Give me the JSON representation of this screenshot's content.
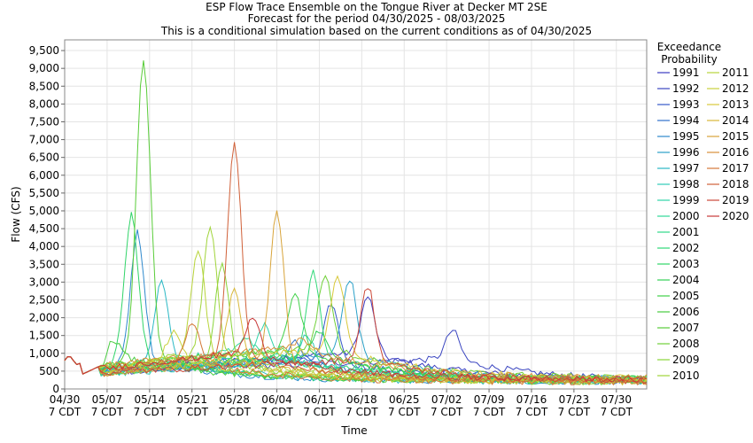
{
  "chart_data": {
    "type": "line",
    "title": [
      "ESP Flow Trace Ensemble on the Tongue River at Decker MT 2SE",
      "Forecast for the period 04/30/2025 - 08/03/2025",
      "This is a conditional simulation based on the current conditions as of 04/30/2025"
    ],
    "xlabel": "Time",
    "ylabel": "Flow (CFS)",
    "ylim": [
      0,
      9800
    ],
    "yticks": [
      0,
      500,
      1000,
      1500,
      2000,
      2500,
      3000,
      3500,
      4000,
      4500,
      5000,
      5500,
      6000,
      6500,
      7000,
      7500,
      8000,
      8500,
      9000,
      9500
    ],
    "ytick_labels": [
      "0",
      "500",
      "1,000",
      "1,500",
      "2,000",
      "2,500",
      "3,000",
      "3,500",
      "4,000",
      "4,500",
      "5,000",
      "5,500",
      "6,000",
      "6,500",
      "7,000",
      "7,500",
      "8,000",
      "8,500",
      "9,000",
      "9,500"
    ],
    "xlim_days": [
      0,
      96
    ],
    "xticks": [
      {
        "day": 0,
        "date": "04/30",
        "tz": "7 CDT"
      },
      {
        "day": 7,
        "date": "05/07",
        "tz": "7 CDT"
      },
      {
        "day": 14,
        "date": "05/14",
        "tz": "7 CDT"
      },
      {
        "day": 21,
        "date": "05/21",
        "tz": "7 CDT"
      },
      {
        "day": 28,
        "date": "05/28",
        "tz": "7 CDT"
      },
      {
        "day": 35,
        "date": "06/04",
        "tz": "7 CDT"
      },
      {
        "day": 42,
        "date": "06/11",
        "tz": "7 CDT"
      },
      {
        "day": 49,
        "date": "06/18",
        "tz": "7 CDT"
      },
      {
        "day": 56,
        "date": "06/25",
        "tz": "7 CDT"
      },
      {
        "day": 63,
        "date": "07/02",
        "tz": "7 CDT"
      },
      {
        "day": 70,
        "date": "07/09",
        "tz": "7 CDT"
      },
      {
        "day": 77,
        "date": "07/16",
        "tz": "7 CDT"
      },
      {
        "day": 84,
        "date": "07/23",
        "tz": "7 CDT"
      },
      {
        "day": 91,
        "date": "07/30",
        "tz": "7 CDT"
      }
    ],
    "grid": true,
    "legend_title": [
      "Exceedance",
      "Probability"
    ],
    "legend_position": "right",
    "series": [
      {
        "name": "1991",
        "color": "#3a3ac0",
        "peak_day": 50,
        "peak": 2600
      },
      {
        "name": "1992",
        "color": "#3a45c0",
        "peak_day": 64,
        "peak": 1650
      },
      {
        "name": "1993",
        "color": "#3558c8",
        "peak_day": 44,
        "peak": 2400
      },
      {
        "name": "1994",
        "color": "#3070cc",
        "peak_day": 38,
        "peak": 1300
      },
      {
        "name": "1995",
        "color": "#2d88cc",
        "peak_day": 12,
        "peak": 4400
      },
      {
        "name": "1996",
        "color": "#2aa0c8",
        "peak_day": 47,
        "peak": 3100
      },
      {
        "name": "1997",
        "color": "#2ab8c4",
        "peak_day": 16,
        "peak": 3000
      },
      {
        "name": "1998",
        "color": "#2ecab8",
        "peak_day": 40,
        "peak": 1500
      },
      {
        "name": "1999",
        "color": "#30d4a8",
        "peak_day": 33,
        "peak": 1800
      },
      {
        "name": "2000",
        "color": "#30d898",
        "peak_day": 30,
        "peak": 1400
      },
      {
        "name": "2001",
        "color": "#30d888",
        "peak_day": 36,
        "peak": 1200
      },
      {
        "name": "2002",
        "color": "#30d878",
        "peak_day": 41,
        "peak": 3300
      },
      {
        "name": "2003",
        "color": "#30d468",
        "peak_day": 11,
        "peak": 4900
      },
      {
        "name": "2004",
        "color": "#34d058",
        "peak_day": 42,
        "peak": 1600
      },
      {
        "name": "2005",
        "color": "#40d048",
        "peak_day": 38,
        "peak": 2700
      },
      {
        "name": "2006",
        "color": "#48cc40",
        "peak_day": 8,
        "peak": 1400
      },
      {
        "name": "2007",
        "color": "#58cc38",
        "peak_day": 13,
        "peak": 9300
      },
      {
        "name": "2008",
        "color": "#70d038",
        "peak_day": 43,
        "peak": 3200
      },
      {
        "name": "2009",
        "color": "#88d438",
        "peak_day": 26,
        "peak": 3500
      },
      {
        "name": "2010",
        "color": "#a0d43a",
        "peak_day": 24,
        "peak": 4500
      },
      {
        "name": "2011",
        "color": "#b8d43a",
        "peak_day": 22,
        "peak": 3900
      },
      {
        "name": "2012",
        "color": "#c8d03a",
        "peak_day": 18,
        "peak": 1600
      },
      {
        "name": "2013",
        "color": "#d8c83a",
        "peak_day": 45,
        "peak": 3200
      },
      {
        "name": "2014",
        "color": "#d8b83a",
        "peak_day": 28,
        "peak": 2800
      },
      {
        "name": "2015",
        "color": "#d8a43a",
        "peak_day": 35,
        "peak": 5000
      },
      {
        "name": "2016",
        "color": "#d8903a",
        "peak_day": 39,
        "peak": 1400
      },
      {
        "name": "2017",
        "color": "#d47838",
        "peak_day": 21,
        "peak": 1900
      },
      {
        "name": "2018",
        "color": "#d06038",
        "peak_day": 28,
        "peak": 6900
      },
      {
        "name": "2019",
        "color": "#cc4838",
        "peak_day": 50,
        "peak": 2900
      },
      {
        "name": "2020",
        "color": "#c83838",
        "peak_day": 31,
        "peak": 2000
      }
    ]
  }
}
